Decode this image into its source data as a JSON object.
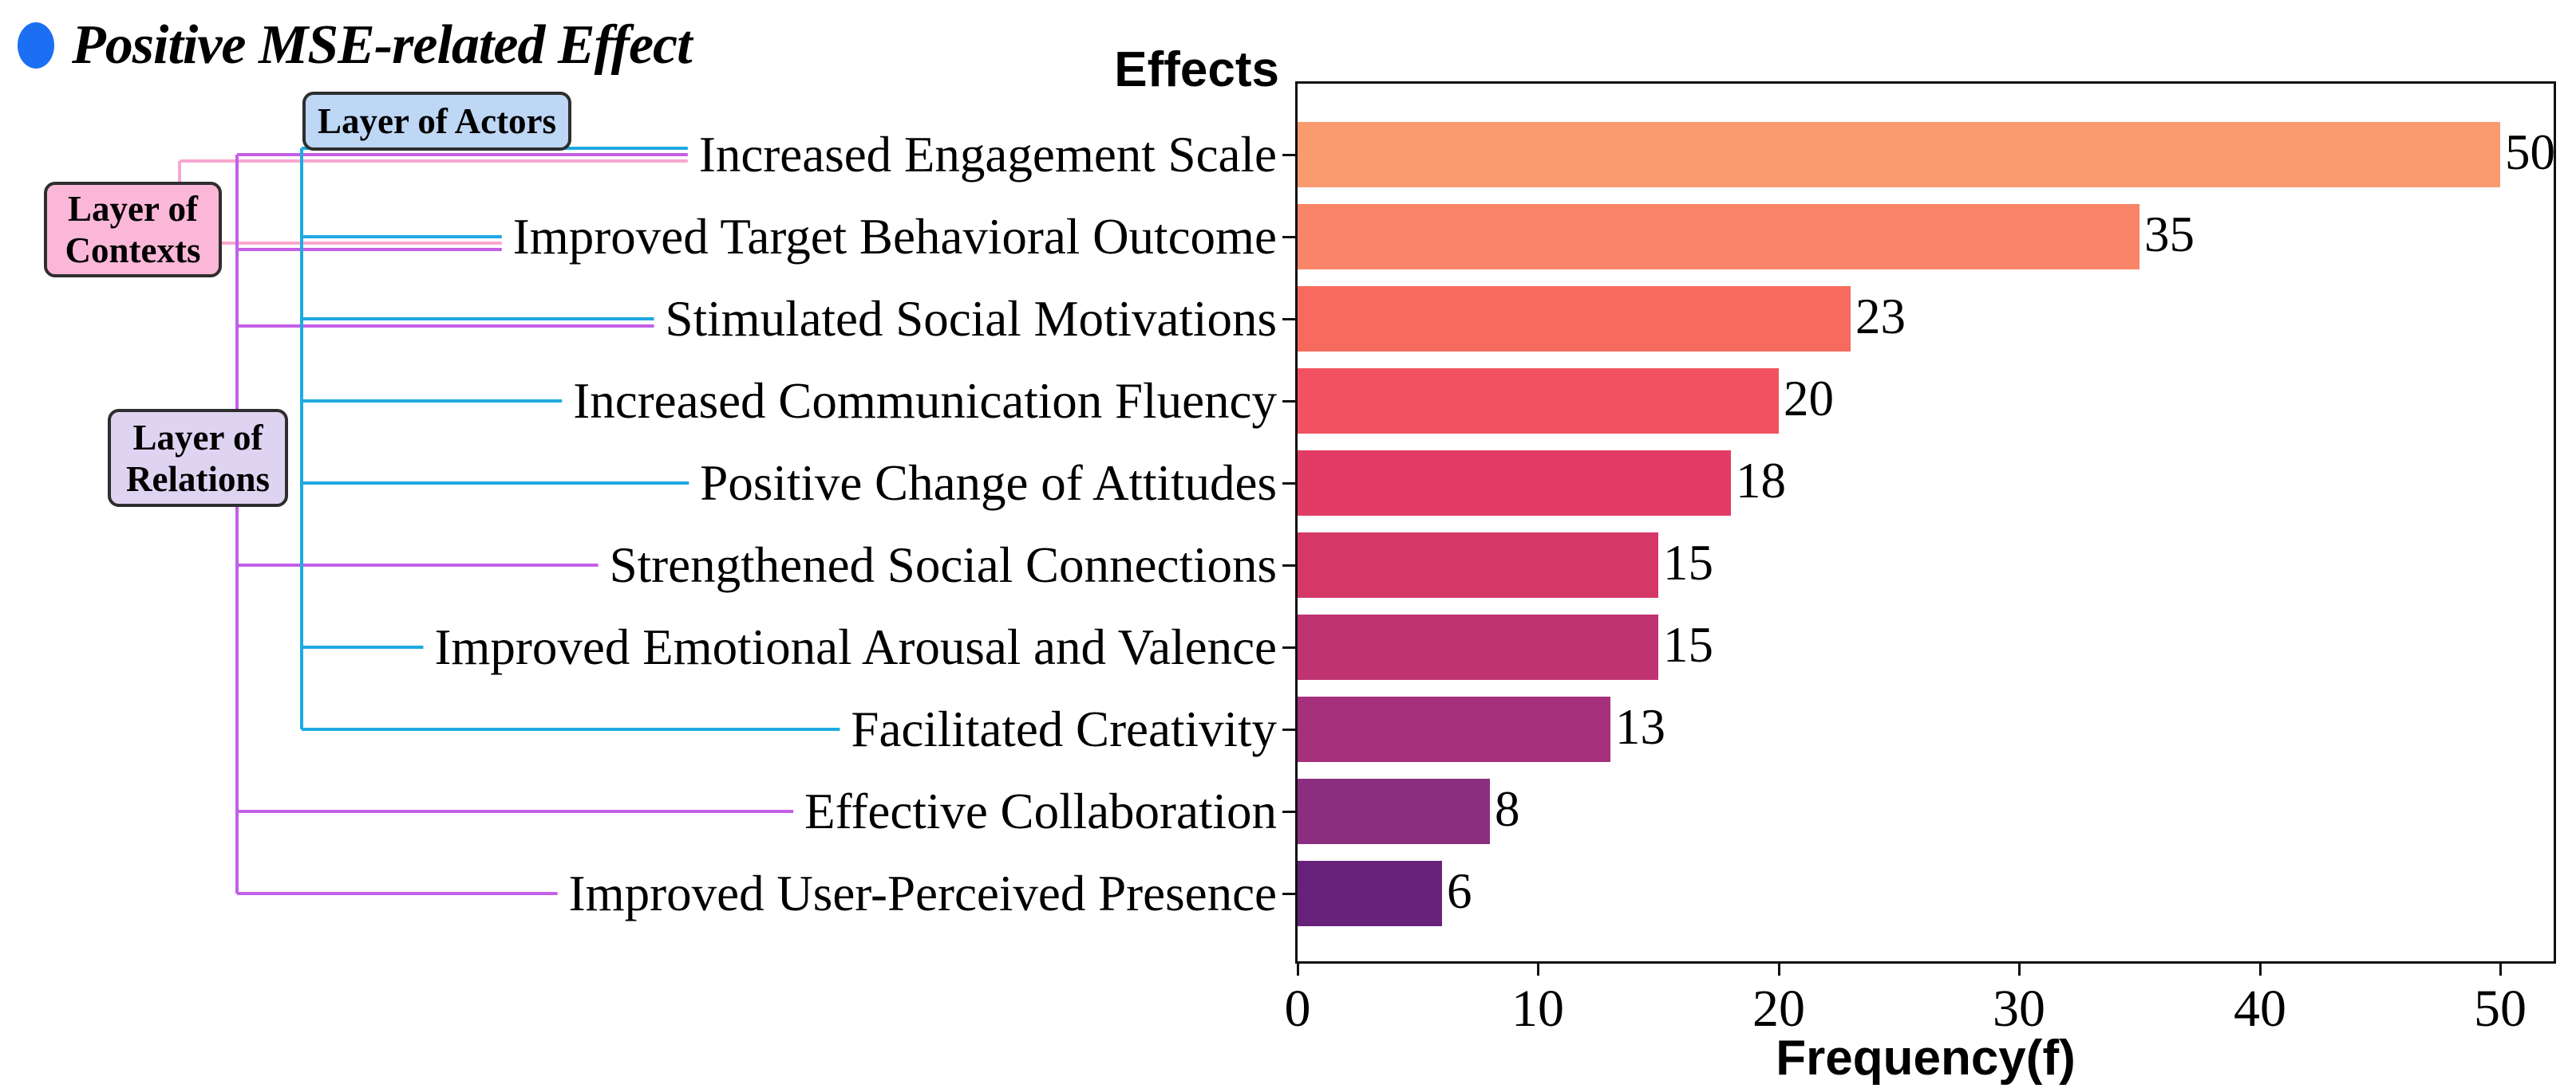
{
  "title": {
    "text": "Positive MSE-related Effect",
    "bullet_color": "#1C6FF2"
  },
  "chart_data": {
    "type": "bar",
    "orientation": "horizontal",
    "header": "Effects",
    "xlabel": "Frequency(f)",
    "categories": [
      "Increased Engagement Scale",
      "Improved Target Behavioral Outcome",
      "Stimulated Social Motivations",
      "Increased Communication Fluency",
      "Positive Change of Attitudes",
      "Strengthened Social Connections",
      "Improved Emotional Arousal and Valence",
      "Facilitated Creativity",
      "Effective Collaboration",
      "Improved User-Perceived Presence"
    ],
    "values": [
      50,
      35,
      23,
      20,
      18,
      15,
      15,
      13,
      8,
      6
    ],
    "bar_colors": [
      "#FA9B6F",
      "#F98467",
      "#F76B5E",
      "#F25161",
      "#E23C66",
      "#D53767",
      "#BF3371",
      "#A6307B",
      "#8C2E80",
      "#68217A"
    ],
    "xticks": [
      0,
      10,
      20,
      30,
      40,
      50
    ],
    "xlim": [
      0,
      52.3
    ],
    "grid": false,
    "value_label_color": "#000000",
    "spine_color": "#101010"
  },
  "layers": {
    "actors": {
      "label_line1": "Layer of Actors",
      "label_line2": "",
      "fill": "#BDD7F5",
      "border": "#2e2e2e",
      "line_color": "#1FA9E1",
      "effects": [
        "Increased Engagement Scale",
        "Improved Target Behavioral Outcome",
        "Stimulated Social Motivations",
        "Increased Communication Fluency",
        "Positive Change of Attitudes",
        "Improved Emotional Arousal and Valence",
        "Facilitated Creativity"
      ]
    },
    "contexts": {
      "label_line1": "Layer of",
      "label_line2": "Contexts",
      "fill": "#FBB7D8",
      "border": "#2e2e2e",
      "line_color": "#F8A8D0",
      "effects": [
        "Increased Engagement Scale",
        "Improved Target Behavioral Outcome"
      ]
    },
    "relations": {
      "label_line1": "Layer of",
      "label_line2": "Relations",
      "fill": "#DFD3F2",
      "border": "#2e2e2e",
      "line_color": "#C45FE8",
      "effects": [
        "Increased Engagement Scale",
        "Improved Target Behavioral Outcome",
        "Stimulated Social Motivations",
        "Strengthened Social Connections",
        "Effective Collaboration",
        "Improved User-Perceived Presence"
      ]
    }
  }
}
